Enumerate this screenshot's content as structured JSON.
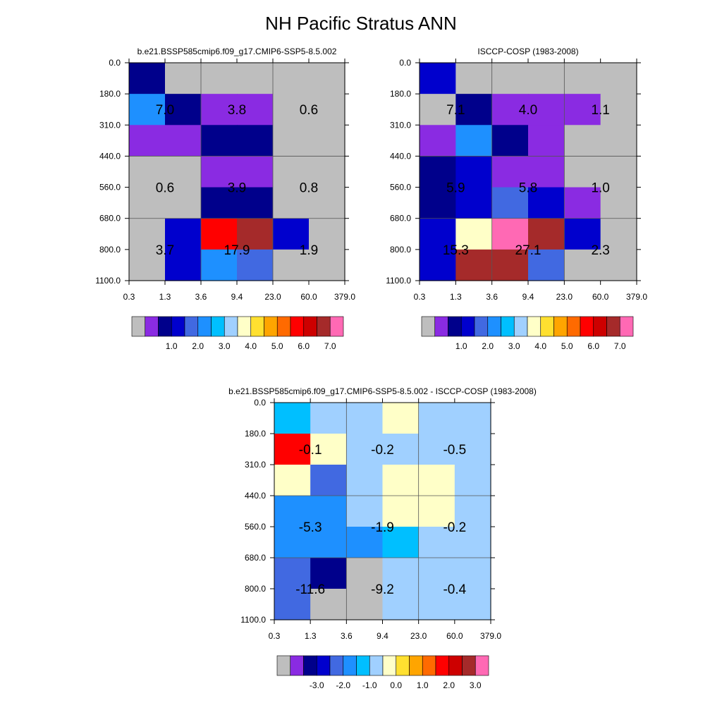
{
  "title": "NH Pacific Stratus ANN",
  "colors": {
    "missing": "#bebebe",
    "purple": "#8a2be2",
    "navy": "#00008b",
    "blue": "#0000cd",
    "royalblue": "#4169e1",
    "dodger": "#1e90ff",
    "skyblue": "#00bfff",
    "lightblue": "#a0d0ff",
    "cream": "#ffffc8",
    "yellow": "#ffe030",
    "gold": "#ffa500",
    "orange": "#ff6a00",
    "red": "#ff0000",
    "darkred": "#cd0000",
    "brown": "#a52a2a",
    "pink": "#ff69b4"
  },
  "chart_data": [
    {
      "type": "heatmap",
      "id": "model",
      "title": "b.e21.BSSP585cmip6.f09_g17.CMIP6-SSP5-8.5.002",
      "x_ticks": [
        "0.3",
        "1.3",
        "3.6",
        "9.4",
        "23.0",
        "60.0",
        "379.0"
      ],
      "y_ticks": [
        "0.0",
        "180.0",
        "310.0",
        "440.0",
        "560.0",
        "680.0",
        "800.0",
        "1100.0"
      ],
      "cells": [
        [
          "navy",
          "missing",
          "missing",
          "missing",
          "missing",
          "missing"
        ],
        [
          "dodger",
          "navy",
          "purple",
          "purple",
          "missing",
          "missing"
        ],
        [
          "purple",
          "purple",
          "navy",
          "navy",
          "missing",
          "missing"
        ],
        [
          "missing",
          "missing",
          "purple",
          "purple",
          "missing",
          "missing"
        ],
        [
          "missing",
          "missing",
          "navy",
          "navy",
          "missing",
          "missing"
        ],
        [
          "missing",
          "blue",
          "red",
          "brown",
          "blue",
          "missing"
        ],
        [
          "missing",
          "blue",
          "dodger",
          "royalblue",
          "missing",
          "missing"
        ]
      ],
      "labels": [
        {
          "text": "7.0",
          "col": 0,
          "row": 0
        },
        {
          "text": "3.8",
          "col": 1,
          "row": 0
        },
        {
          "text": "0.6",
          "col": 2,
          "row": 0
        },
        {
          "text": "0.6",
          "col": 0,
          "row": 1
        },
        {
          "text": "3.9",
          "col": 1,
          "row": 1
        },
        {
          "text": "0.8",
          "col": 2,
          "row": 1
        },
        {
          "text": "3.7",
          "col": 0,
          "row": 2
        },
        {
          "text": "17.9",
          "col": 1,
          "row": 2
        },
        {
          "text": "1.9",
          "col": 2,
          "row": 2
        }
      ],
      "colorbar": {
        "colors": [
          "missing",
          "purple",
          "navy",
          "blue",
          "royalblue",
          "dodger",
          "skyblue",
          "lightblue",
          "cream",
          "yellow",
          "gold",
          "orange",
          "red",
          "darkred",
          "brown",
          "pink"
        ],
        "labels": [
          "1.0",
          "2.0",
          "3.0",
          "4.0",
          "5.0",
          "6.0",
          "7.0"
        ]
      }
    },
    {
      "type": "heatmap",
      "id": "obs",
      "title": "ISCCP-COSP (1983-2008)",
      "x_ticks": [
        "0.3",
        "1.3",
        "3.6",
        "9.4",
        "23.0",
        "60.0",
        "379.0"
      ],
      "y_ticks": [
        "0.0",
        "180.0",
        "310.0",
        "440.0",
        "560.0",
        "680.0",
        "800.0",
        "1100.0"
      ],
      "cells": [
        [
          "blue",
          "missing",
          "missing",
          "missing",
          "missing",
          "missing"
        ],
        [
          "missing",
          "navy",
          "purple",
          "purple",
          "purple",
          "missing"
        ],
        [
          "purple",
          "dodger",
          "navy",
          "purple",
          "missing",
          "missing"
        ],
        [
          "navy",
          "blue",
          "purple",
          "purple",
          "missing",
          "missing"
        ],
        [
          "navy",
          "blue",
          "royalblue",
          "blue",
          "purple",
          "missing"
        ],
        [
          "blue",
          "cream",
          "pink",
          "brown",
          "blue",
          "missing"
        ],
        [
          "blue",
          "brown",
          "brown",
          "royalblue",
          "missing",
          "missing"
        ]
      ],
      "labels": [
        {
          "text": "7.1",
          "col": 0,
          "row": 0
        },
        {
          "text": "4.0",
          "col": 1,
          "row": 0
        },
        {
          "text": "1.1",
          "col": 2,
          "row": 0
        },
        {
          "text": "5.9",
          "col": 0,
          "row": 1
        },
        {
          "text": "5.8",
          "col": 1,
          "row": 1
        },
        {
          "text": "1.0",
          "col": 2,
          "row": 1
        },
        {
          "text": "15.3",
          "col": 0,
          "row": 2
        },
        {
          "text": "27.1",
          "col": 1,
          "row": 2
        },
        {
          "text": "2.3",
          "col": 2,
          "row": 2
        }
      ],
      "colorbar": {
        "colors": [
          "missing",
          "purple",
          "navy",
          "blue",
          "royalblue",
          "dodger",
          "skyblue",
          "lightblue",
          "cream",
          "yellow",
          "gold",
          "orange",
          "red",
          "darkred",
          "brown",
          "pink"
        ],
        "labels": [
          "1.0",
          "2.0",
          "3.0",
          "4.0",
          "5.0",
          "6.0",
          "7.0"
        ]
      }
    },
    {
      "type": "heatmap",
      "id": "diff",
      "title": "b.e21.BSSP585cmip6.f09_g17.CMIP6-SSP5-8.5.002 - ISCCP-COSP (1983-2008)",
      "x_ticks": [
        "0.3",
        "1.3",
        "3.6",
        "9.4",
        "23.0",
        "60.0",
        "379.0"
      ],
      "y_ticks": [
        "0.0",
        "180.0",
        "310.0",
        "440.0",
        "560.0",
        "680.0",
        "800.0",
        "1100.0"
      ],
      "cells": [
        [
          "skyblue",
          "lightblue",
          "lightblue",
          "cream",
          "lightblue",
          "lightblue"
        ],
        [
          "red",
          "cream",
          "lightblue",
          "lightblue",
          "lightblue",
          "lightblue"
        ],
        [
          "cream",
          "royalblue",
          "lightblue",
          "cream",
          "cream",
          "lightblue"
        ],
        [
          "dodger",
          "dodger",
          "lightblue",
          "cream",
          "cream",
          "lightblue"
        ],
        [
          "dodger",
          "dodger",
          "dodger",
          "skyblue",
          "lightblue",
          "lightblue"
        ],
        [
          "royalblue",
          "navy",
          "missing",
          "lightblue",
          "lightblue",
          "lightblue"
        ],
        [
          "royalblue",
          "missing",
          "missing",
          "lightblue",
          "lightblue",
          "lightblue"
        ]
      ],
      "labels": [
        {
          "text": "-0.1",
          "col": 0,
          "row": 0
        },
        {
          "text": "-0.2",
          "col": 1,
          "row": 0
        },
        {
          "text": "-0.5",
          "col": 2,
          "row": 0
        },
        {
          "text": "-5.3",
          "col": 0,
          "row": 1
        },
        {
          "text": "-1.9",
          "col": 1,
          "row": 1
        },
        {
          "text": "-0.2",
          "col": 2,
          "row": 1
        },
        {
          "text": "-11.6",
          "col": 0,
          "row": 2
        },
        {
          "text": "-9.2",
          "col": 1,
          "row": 2
        },
        {
          "text": "-0.4",
          "col": 2,
          "row": 2
        }
      ],
      "colorbar": {
        "colors": [
          "missing",
          "purple",
          "navy",
          "blue",
          "royalblue",
          "dodger",
          "skyblue",
          "lightblue",
          "cream",
          "yellow",
          "gold",
          "orange",
          "red",
          "darkred",
          "brown",
          "pink"
        ],
        "labels": [
          "-3.0",
          "-2.0",
          "-1.0",
          "0.0",
          "1.0",
          "2.0",
          "3.0"
        ]
      }
    }
  ]
}
